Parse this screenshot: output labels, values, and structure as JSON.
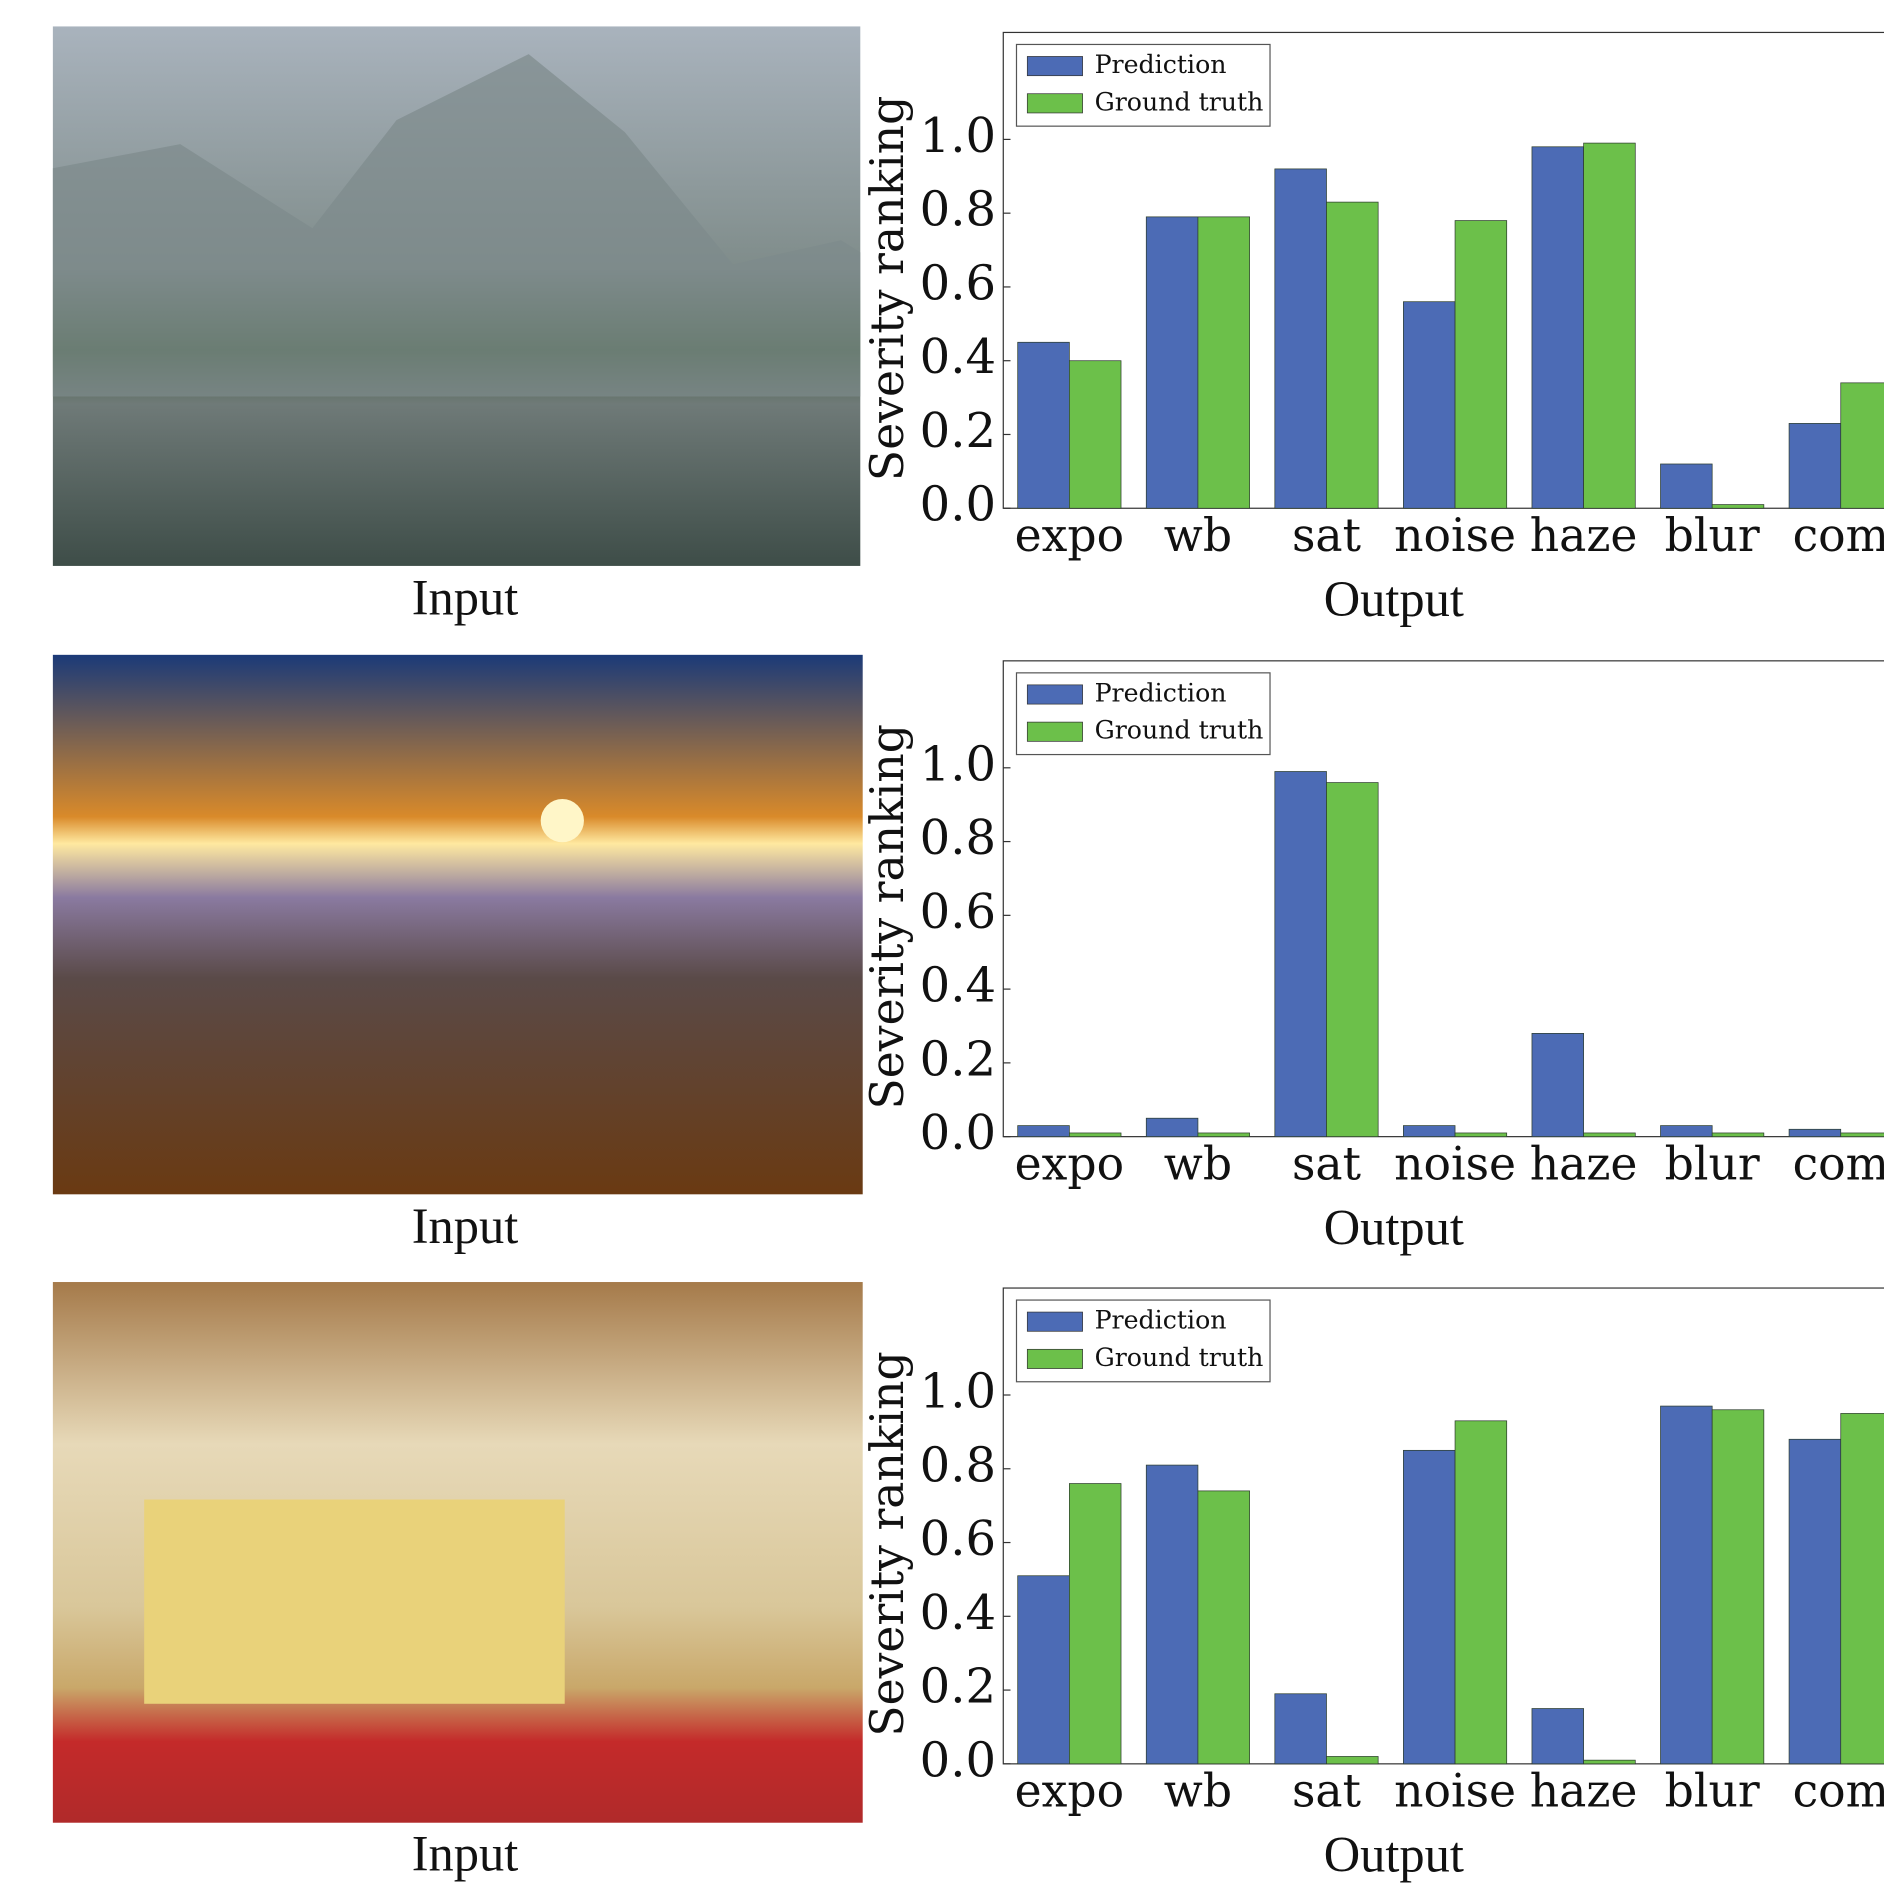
{
  "image_captions": [
    "Input",
    "Input",
    "Input"
  ],
  "chart_data": [
    {
      "type": "bar",
      "ylabel": "Severity ranking",
      "xlabel": "Output",
      "categories": [
        "expo",
        "wb",
        "sat",
        "noise",
        "haze",
        "blur",
        "com"
      ],
      "series": [
        {
          "name": "Prediction",
          "color": "#4c6bb5",
          "values": [
            0.45,
            0.79,
            0.92,
            0.56,
            0.98,
            0.12,
            0.23
          ]
        },
        {
          "name": "Ground truth",
          "color": "#6cc04a",
          "values": [
            0.4,
            0.79,
            0.83,
            0.78,
            0.99,
            0.01,
            0.34
          ]
        }
      ],
      "ylim": [
        0,
        1.29
      ],
      "yticks": [
        {
          "value": 0,
          "label": "0.0"
        },
        {
          "value": 0.2,
          "label": "0.2"
        },
        {
          "value": 0.4,
          "label": "0.4"
        },
        {
          "value": 0.6,
          "label": "0.6"
        },
        {
          "value": 0.8,
          "label": "0.8"
        },
        {
          "value": 1,
          "label": "1.0"
        }
      ],
      "legend": "upper left"
    },
    {
      "type": "bar",
      "ylabel": "Severity ranking",
      "xlabel": "Output",
      "categories": [
        "expo",
        "wb",
        "sat",
        "noise",
        "haze",
        "blur",
        "com"
      ],
      "series": [
        {
          "name": "Prediction",
          "color": "#4c6bb5",
          "values": [
            0.03,
            0.05,
            0.99,
            0.03,
            0.28,
            0.03,
            0.02
          ]
        },
        {
          "name": "Ground truth",
          "color": "#6cc04a",
          "values": [
            0.01,
            0.01,
            0.96,
            0.01,
            0.01,
            0.01,
            0.01
          ]
        }
      ],
      "ylim": [
        0,
        1.29
      ],
      "yticks": [
        {
          "value": 0,
          "label": "0.0"
        },
        {
          "value": 0.2,
          "label": "0.2"
        },
        {
          "value": 0.4,
          "label": "0.4"
        },
        {
          "value": 0.6,
          "label": "0.6"
        },
        {
          "value": 0.8,
          "label": "0.8"
        },
        {
          "value": 1,
          "label": "1.0"
        }
      ],
      "legend": "upper left"
    },
    {
      "type": "bar",
      "ylabel": "Severity ranking",
      "xlabel": "Output",
      "categories": [
        "expo",
        "wb",
        "sat",
        "noise",
        "haze",
        "blur",
        "com"
      ],
      "series": [
        {
          "name": "Prediction",
          "color": "#4c6bb5",
          "values": [
            0.51,
            0.81,
            0.19,
            0.85,
            0.15,
            0.97,
            0.88
          ]
        },
        {
          "name": "Ground truth",
          "color": "#6cc04a",
          "values": [
            0.76,
            0.74,
            0.02,
            0.93,
            0.01,
            0.96,
            0.95
          ]
        }
      ],
      "ylim": [
        0,
        1.29
      ],
      "yticks": [
        {
          "value": 0,
          "label": "0.0"
        },
        {
          "value": 0.2,
          "label": "0.2"
        },
        {
          "value": 0.4,
          "label": "0.4"
        },
        {
          "value": 0.6,
          "label": "0.6"
        },
        {
          "value": 0.8,
          "label": "0.8"
        },
        {
          "value": 1,
          "label": "1.0"
        }
      ],
      "legend": "upper left"
    }
  ]
}
